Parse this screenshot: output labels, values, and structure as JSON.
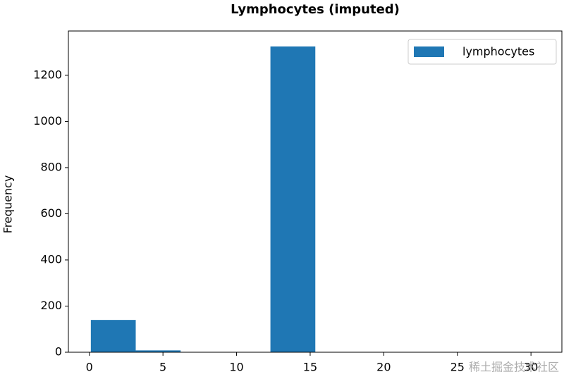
{
  "chart_data": {
    "type": "histogram",
    "title": "Lymphocytes (imputed)",
    "y_label": "Frequency",
    "bins": [
      0.1,
      3.15,
      6.2,
      9.25,
      12.3,
      15.35,
      18.4,
      21.45,
      24.5,
      27.55,
      30.6
    ],
    "series": [
      {
        "name": "lymphocytes",
        "color": "#1f77b4",
        "values": [
          140,
          8,
          0,
          0,
          1325,
          0,
          0,
          0,
          0,
          1
        ]
      }
    ],
    "xlim": [
      -1.425,
      32.1
    ],
    "xticks": [
      0,
      5,
      10,
      15,
      20,
      25,
      30
    ],
    "ylim": [
      0,
      1392
    ],
    "yticks": [
      0,
      200,
      400,
      600,
      800,
      1000,
      1200
    ],
    "grid": false,
    "legend": "upper right",
    "watermark": "稀土掘金技术社区"
  }
}
